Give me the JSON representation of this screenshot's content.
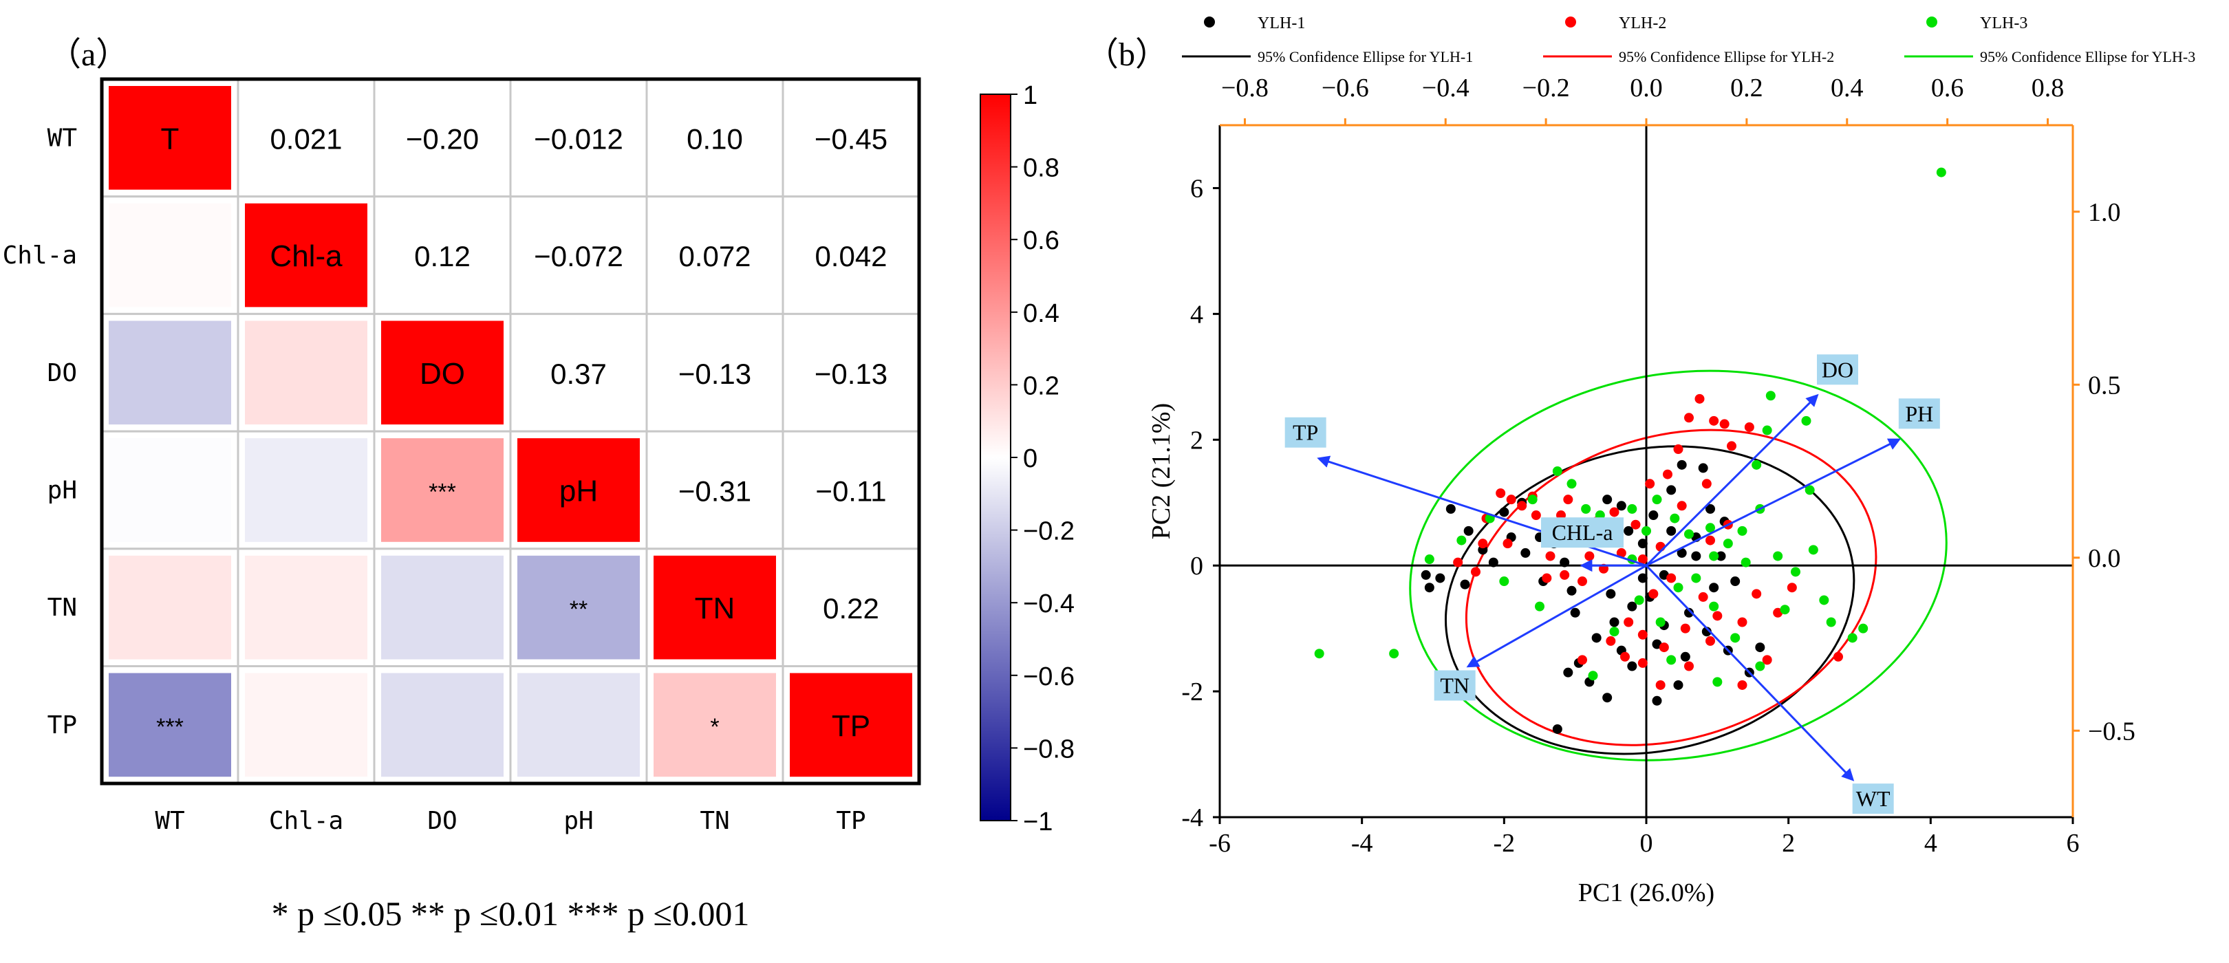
{
  "panel_a": {
    "label": "（a）",
    "significance_note": "* p ≤0.05  ** p ≤0.01  *** p ≤0.001",
    "chart_data": {
      "type": "heatmap",
      "variables": [
        "WT",
        "Chl-a",
        "DO",
        "pH",
        "TN",
        "TP"
      ],
      "diagonal_labels": [
        "T",
        "Chl-a",
        "DO",
        "pH",
        "TN",
        "TP"
      ],
      "upper_labels": [
        [
          "",
          "0.021",
          "−0.20",
          "−0.012",
          "0.10",
          "−0.45"
        ],
        [
          "",
          "",
          "0.12",
          "−0.072",
          "0.072",
          "0.042"
        ],
        [
          "",
          "",
          "",
          "0.37",
          "−0.13",
          "−0.13"
        ],
        [
          "",
          "",
          "",
          "",
          "−0.31",
          "−0.11"
        ],
        [
          "",
          "",
          "",
          "",
          "",
          "0.22"
        ],
        [
          "",
          "",
          "",
          "",
          "",
          ""
        ]
      ],
      "lower_values": [
        [
          1,
          null,
          null,
          null,
          null,
          null
        ],
        [
          0.021,
          1,
          null,
          null,
          null,
          null
        ],
        [
          -0.2,
          0.12,
          1,
          null,
          null,
          null
        ],
        [
          -0.012,
          -0.072,
          0.37,
          1,
          null,
          null
        ],
        [
          0.1,
          0.072,
          -0.13,
          -0.31,
          1,
          null
        ],
        [
          -0.45,
          0.042,
          -0.13,
          -0.11,
          0.22,
          1
        ]
      ],
      "significance": [
        [
          "",
          "",
          "",
          "",
          "",
          ""
        ],
        [
          "",
          "",
          "",
          "",
          "",
          ""
        ],
        [
          "",
          "",
          "",
          "",
          "",
          ""
        ],
        [
          "",
          "",
          "***",
          "",
          "",
          ""
        ],
        [
          "",
          "",
          "",
          "**",
          "",
          ""
        ],
        [
          "***",
          "",
          "",
          "",
          "*",
          ""
        ]
      ],
      "colorbar": {
        "min": -1,
        "max": 1,
        "ticks": [
          1,
          0.8,
          0.6,
          0.4,
          0.2,
          0,
          -0.2,
          -0.4,
          -0.6,
          -0.8,
          -1
        ],
        "tick_labels": [
          "1",
          "0.8",
          "0.6",
          "0.4",
          "0.2",
          "0",
          "−0.2",
          "−0.4",
          "−0.6",
          "−0.8",
          "−1"
        ],
        "colors": {
          "positive": "#ff0000",
          "zero": "#ffffff",
          "negative": "#00008b"
        }
      }
    }
  },
  "panel_b": {
    "label": "（b）",
    "legend": [
      {
        "label": "YLH-1",
        "kind": "dot",
        "color": "#000000"
      },
      {
        "label": "YLH-2",
        "kind": "dot",
        "color": "#ff0000"
      },
      {
        "label": "YLH-3",
        "kind": "dot",
        "color": "#00e000"
      },
      {
        "label": "95% Confidence Ellipse for YLH-1",
        "kind": "line",
        "color": "#000000"
      },
      {
        "label": "95% Confidence Ellipse for YLH-2",
        "kind": "line",
        "color": "#ff0000"
      },
      {
        "label": "95% Confidence Ellipse for YLH-3",
        "kind": "line",
        "color": "#00e000"
      }
    ],
    "chart_data": {
      "type": "scatter",
      "xlabel": "PC1 (26.0%)",
      "ylabel": "PC2 (21.1%)",
      "xlim": [
        -6,
        6
      ],
      "ylim": [
        -4,
        7
      ],
      "xticks": [
        -6,
        -4,
        -2,
        0,
        2,
        4,
        6
      ],
      "yticks": [
        -4,
        -2,
        0,
        2,
        4,
        6
      ],
      "top_axis": {
        "lim": [
          -0.85,
          0.85
        ],
        "ticks": [
          "−0.8",
          "−0.6",
          "−0.4",
          "−0.2",
          "0.0",
          "0.2",
          "0.4",
          "0.6",
          "0.8"
        ],
        "values": [
          -0.8,
          -0.6,
          -0.4,
          -0.2,
          0,
          0.2,
          0.4,
          0.6,
          0.8
        ],
        "color": "#000000"
      },
      "right_axis": {
        "lim": [
          -0.75,
          1.25
        ],
        "ticks": [
          "1.0",
          "0.5",
          "0.0",
          "−0.5"
        ],
        "values": [
          1.0,
          0.5,
          0.0,
          -0.5
        ],
        "color": "#ff8c1a"
      },
      "frame_top_right_color": "#ff8c1a",
      "loadings": [
        {
          "name": "DO",
          "x": 2.4,
          "y": 2.7
        },
        {
          "name": "PH",
          "x": 3.55,
          "y": 2.0
        },
        {
          "name": "TP",
          "x": -4.6,
          "y": 1.7
        },
        {
          "name": "CHL-a",
          "x": -0.9,
          "y": 0.0
        },
        {
          "name": "TN",
          "x": -2.5,
          "y": -1.6
        },
        {
          "name": "WT",
          "x": 2.9,
          "y": -3.4
        }
      ],
      "loading_color": "#1f3cff",
      "ellipses": [
        {
          "group": "YLH-1",
          "cx": 0.05,
          "cy": -0.55,
          "rx": 2.9,
          "ry": 2.4,
          "angle": -12,
          "color": "#000000"
        },
        {
          "group": "YLH-2",
          "cx": 0.35,
          "cy": -0.35,
          "rx": 2.95,
          "ry": 2.4,
          "angle": -18,
          "color": "#ff0000"
        },
        {
          "group": "YLH-3",
          "cx": 0.45,
          "cy": 0.0,
          "rx": 3.8,
          "ry": 3.05,
          "angle": -10,
          "color": "#00e000"
        }
      ],
      "series": [
        {
          "name": "YLH-1",
          "color": "#000000",
          "points": [
            [
              -2.9,
              -0.2
            ],
            [
              -3.05,
              -0.35
            ],
            [
              -3.1,
              -0.15
            ],
            [
              -2.75,
              0.9
            ],
            [
              -2.5,
              0.55
            ],
            [
              -2.3,
              0.25
            ],
            [
              -2.55,
              -0.3
            ],
            [
              -2.0,
              0.85
            ],
            [
              -1.9,
              0.45
            ],
            [
              -1.75,
              1.0
            ],
            [
              -1.5,
              0.45
            ],
            [
              -1.3,
              0.35
            ],
            [
              -1.15,
              0.05
            ],
            [
              -1.7,
              0.2
            ],
            [
              -2.15,
              0.05
            ],
            [
              -1.45,
              -0.25
            ],
            [
              -1.05,
              -0.4
            ],
            [
              -0.85,
              0.55
            ],
            [
              -0.55,
              1.05
            ],
            [
              -0.35,
              0.95
            ],
            [
              -0.25,
              0.55
            ],
            [
              -0.05,
              0.35
            ],
            [
              0.1,
              0.8
            ],
            [
              0.35,
              1.2
            ],
            [
              0.5,
              1.6
            ],
            [
              0.8,
              1.55
            ],
            [
              0.9,
              0.9
            ],
            [
              1.1,
              0.7
            ],
            [
              0.7,
              0.45
            ],
            [
              0.5,
              0.2
            ],
            [
              0.25,
              -0.15
            ],
            [
              0.05,
              -0.5
            ],
            [
              -0.2,
              -0.65
            ],
            [
              -0.45,
              -0.9
            ],
            [
              -0.7,
              -1.15
            ],
            [
              -0.95,
              -1.55
            ],
            [
              -1.1,
              -1.7
            ],
            [
              -0.8,
              -1.85
            ],
            [
              -0.55,
              -2.1
            ],
            [
              -0.2,
              -1.6
            ],
            [
              0.25,
              -0.95
            ],
            [
              0.6,
              -0.75
            ],
            [
              0.85,
              -1.05
            ],
            [
              1.15,
              -1.35
            ],
            [
              1.45,
              -1.7
            ],
            [
              0.55,
              -1.45
            ],
            [
              0.15,
              -1.25
            ],
            [
              -0.5,
              -0.45
            ],
            [
              -1.0,
              -0.75
            ],
            [
              -1.25,
              -2.6
            ],
            [
              0.95,
              -0.35
            ],
            [
              1.25,
              -0.25
            ],
            [
              1.6,
              -1.3
            ],
            [
              0.7,
              0.15
            ],
            [
              0.35,
              0.55
            ],
            [
              -0.05,
              -0.2
            ],
            [
              0.15,
              -2.15
            ],
            [
              0.45,
              -1.9
            ],
            [
              -0.35,
              -1.35
            ],
            [
              1.05,
              0.15
            ]
          ]
        },
        {
          "name": "YLH-2",
          "color": "#ff0000",
          "points": [
            [
              -2.65,
              0.05
            ],
            [
              -2.4,
              -0.1
            ],
            [
              -2.25,
              0.75
            ],
            [
              -2.05,
              1.15
            ],
            [
              -1.9,
              1.05
            ],
            [
              -1.75,
              0.95
            ],
            [
              -1.6,
              1.1
            ],
            [
              -1.95,
              0.35
            ],
            [
              -2.3,
              0.35
            ],
            [
              -1.55,
              0.8
            ],
            [
              -1.2,
              0.8
            ],
            [
              -1.05,
              0.55
            ],
            [
              -0.8,
              0.15
            ],
            [
              -0.6,
              -0.05
            ],
            [
              -0.9,
              -0.25
            ],
            [
              -1.15,
              -0.15
            ],
            [
              -1.35,
              0.15
            ],
            [
              -1.1,
              1.05
            ],
            [
              -0.7,
              0.7
            ],
            [
              -0.45,
              0.85
            ],
            [
              -0.15,
              0.65
            ],
            [
              0.05,
              1.3
            ],
            [
              0.3,
              1.45
            ],
            [
              0.45,
              1.85
            ],
            [
              0.6,
              2.35
            ],
            [
              0.75,
              2.65
            ],
            [
              0.95,
              2.3
            ],
            [
              1.1,
              2.25
            ],
            [
              1.2,
              1.9
            ],
            [
              1.45,
              2.2
            ],
            [
              0.85,
              1.3
            ],
            [
              0.5,
              0.95
            ],
            [
              0.2,
              0.3
            ],
            [
              -0.05,
              0.1
            ],
            [
              0.35,
              -0.2
            ],
            [
              0.1,
              -0.45
            ],
            [
              -0.25,
              -0.9
            ],
            [
              -0.5,
              -1.2
            ],
            [
              -0.3,
              -1.45
            ],
            [
              -0.05,
              -1.55
            ],
            [
              0.25,
              -1.3
            ],
            [
              0.55,
              -1.0
            ],
            [
              0.8,
              -0.5
            ],
            [
              1.0,
              -0.8
            ],
            [
              1.35,
              -0.9
            ],
            [
              1.55,
              -0.45
            ],
            [
              1.85,
              -0.75
            ],
            [
              2.05,
              -0.35
            ],
            [
              1.7,
              -1.5
            ],
            [
              1.35,
              -1.9
            ],
            [
              0.9,
              -1.2
            ],
            [
              0.6,
              -1.6
            ],
            [
              0.2,
              -1.9
            ],
            [
              2.7,
              -1.45
            ],
            [
              -0.35,
              0.2
            ],
            [
              -1.4,
              -0.2
            ],
            [
              0.9,
              0.4
            ],
            [
              1.15,
              0.65
            ],
            [
              -0.9,
              -1.5
            ],
            [
              -0.05,
              -1.1
            ]
          ]
        },
        {
          "name": "YLH-3",
          "color": "#00e000",
          "points": [
            [
              4.15,
              6.25
            ],
            [
              -4.6,
              -1.4
            ],
            [
              -3.55,
              -1.4
            ],
            [
              -3.05,
              0.1
            ],
            [
              -2.6,
              0.4
            ],
            [
              -2.2,
              0.75
            ],
            [
              -1.6,
              1.05
            ],
            [
              -1.25,
              1.5
            ],
            [
              -1.05,
              1.3
            ],
            [
              -0.85,
              0.9
            ],
            [
              -0.65,
              0.8
            ],
            [
              -0.4,
              0.55
            ],
            [
              -0.2,
              0.9
            ],
            [
              0.0,
              0.55
            ],
            [
              0.15,
              1.05
            ],
            [
              0.4,
              0.75
            ],
            [
              0.6,
              0.5
            ],
            [
              0.9,
              0.6
            ],
            [
              1.15,
              0.35
            ],
            [
              1.35,
              0.55
            ],
            [
              1.6,
              0.9
            ],
            [
              1.7,
              2.15
            ],
            [
              1.75,
              2.7
            ],
            [
              1.55,
              1.6
            ],
            [
              1.85,
              0.15
            ],
            [
              2.1,
              -0.1
            ],
            [
              2.3,
              1.2
            ],
            [
              2.5,
              -0.55
            ],
            [
              2.6,
              -0.9
            ],
            [
              2.9,
              -1.15
            ],
            [
              3.05,
              -1.0
            ],
            [
              1.6,
              -1.6
            ],
            [
              1.25,
              -1.15
            ],
            [
              0.95,
              -0.65
            ],
            [
              0.7,
              -0.2
            ],
            [
              0.45,
              -0.35
            ],
            [
              0.2,
              -0.9
            ],
            [
              -0.1,
              -0.55
            ],
            [
              -0.45,
              -1.05
            ],
            [
              -0.75,
              -1.75
            ],
            [
              -1.5,
              -0.65
            ],
            [
              -2.0,
              -0.25
            ],
            [
              0.35,
              -1.5
            ],
            [
              1.0,
              -1.85
            ],
            [
              1.95,
              -0.7
            ],
            [
              2.35,
              0.25
            ],
            [
              1.4,
              0.05
            ],
            [
              0.95,
              0.15
            ],
            [
              -0.2,
              0.1
            ],
            [
              2.25,
              2.3
            ]
          ]
        }
      ]
    }
  }
}
